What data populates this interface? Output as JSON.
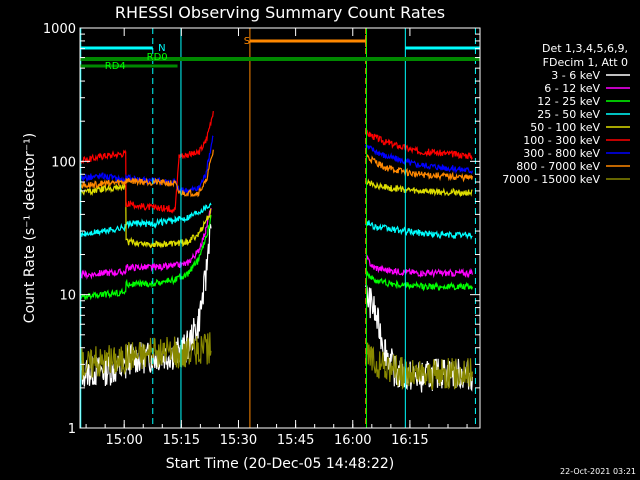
{
  "chart_data": {
    "type": "line",
    "title": "RHESSI Observing Summary Count Rates",
    "xlabel": "Start Time (20-Dec-05 14:48:22)",
    "ylabel": "Count Rate (s⁻¹ detector⁻¹)",
    "yscale": "log",
    "ylim": [
      1,
      1000
    ],
    "xlim_minutes": [
      0,
      105
    ],
    "x_ticks": [
      {
        "label": "15:00",
        "t": 11.6
      },
      {
        "label": "15:15",
        "t": 26.6
      },
      {
        "label": "15:30",
        "t": 41.6
      },
      {
        "label": "15:45",
        "t": 56.6
      },
      {
        "label": "16:00",
        "t": 71.6
      },
      {
        "label": "16:15",
        "t": 86.6
      }
    ],
    "y_ticks": [
      {
        "label": "1",
        "v": 1
      },
      {
        "label": "10",
        "v": 10
      },
      {
        "label": "100",
        "v": 100
      },
      {
        "label": "1000",
        "v": 1000
      }
    ],
    "legend_header": [
      "Det 1,3,4,5,6,9,",
      "FDecim 1, Att 0"
    ],
    "legend_placement": "right",
    "series": [
      {
        "name": "3 - 6 keV",
        "color": "#ffffff",
        "values": [
          [
            0,
            2.6
          ],
          [
            6,
            2.7
          ],
          [
            12,
            2.8
          ],
          [
            12.1,
            3.3
          ],
          [
            19,
            3.4
          ],
          [
            25,
            3.6
          ],
          [
            28,
            4
          ],
          [
            31,
            6
          ],
          [
            33,
            13
          ],
          [
            34.4,
            40
          ],
          [
            75,
            10
          ],
          [
            77,
            8
          ],
          [
            80,
            4
          ],
          [
            83,
            2.5
          ],
          [
            90,
            2.4
          ],
          [
            95,
            2.6
          ],
          [
            103,
            2.5
          ]
        ]
      },
      {
        "name": "6 - 12 keV",
        "color": "#ff00ff",
        "values": [
          [
            0,
            14
          ],
          [
            6,
            14.5
          ],
          [
            12,
            14.8
          ],
          [
            12.1,
            16
          ],
          [
            19,
            16
          ],
          [
            25,
            16.5
          ],
          [
            28,
            17
          ],
          [
            31,
            21
          ],
          [
            33,
            30
          ],
          [
            34.4,
            45
          ],
          [
            75,
            19
          ],
          [
            77,
            16
          ],
          [
            82,
            15
          ],
          [
            90,
            14.5
          ],
          [
            103,
            14.5
          ]
        ]
      },
      {
        "name": "12 - 25 keV",
        "color": "#00ff00",
        "values": [
          [
            0,
            9.5
          ],
          [
            6,
            10
          ],
          [
            12,
            10.5
          ],
          [
            12.1,
            12
          ],
          [
            19,
            12
          ],
          [
            25,
            13
          ],
          [
            28,
            14
          ],
          [
            31,
            18
          ],
          [
            33,
            26
          ],
          [
            34.4,
            38
          ],
          [
            75,
            15
          ],
          [
            77,
            13
          ],
          [
            82,
            12
          ],
          [
            90,
            11.5
          ],
          [
            103,
            11.5
          ]
        ]
      },
      {
        "name": "25 - 50 keV",
        "color": "#00ffff",
        "values": [
          [
            0,
            28
          ],
          [
            6,
            30
          ],
          [
            12,
            32
          ],
          [
            12.1,
            34
          ],
          [
            19,
            34
          ],
          [
            25,
            36
          ],
          [
            28,
            38
          ],
          [
            31,
            42
          ],
          [
            34.4,
            48
          ],
          [
            75,
            35
          ],
          [
            78,
            32
          ],
          [
            85,
            30
          ],
          [
            95,
            28
          ],
          [
            103,
            28
          ]
        ]
      },
      {
        "name": "50 - 100 keV",
        "color": "#dddd00",
        "values": [
          [
            0,
            58
          ],
          [
            6,
            62
          ],
          [
            12,
            65
          ],
          [
            12.1,
            25
          ],
          [
            19,
            24
          ],
          [
            25,
            24
          ],
          [
            28,
            25
          ],
          [
            31,
            28
          ],
          [
            34.4,
            42
          ],
          [
            75,
            70
          ],
          [
            80,
            64
          ],
          [
            88,
            60
          ],
          [
            103,
            58
          ]
        ]
      },
      {
        "name": "100 - 300 keV",
        "color": "#ff0000",
        "values": [
          [
            0,
            100
          ],
          [
            6,
            110
          ],
          [
            12,
            115
          ],
          [
            12.1,
            48
          ],
          [
            19,
            45
          ],
          [
            25,
            44
          ],
          [
            26,
            110
          ],
          [
            31,
            115
          ],
          [
            33,
            140
          ],
          [
            35,
            240
          ],
          [
            75,
            165
          ],
          [
            80,
            140
          ],
          [
            88,
            120
          ],
          [
            103,
            110
          ]
        ]
      },
      {
        "name": "300 - 800 keV",
        "color": "#0000ff",
        "values": [
          [
            0,
            75
          ],
          [
            6,
            78
          ],
          [
            12,
            72
          ],
          [
            12.1,
            75
          ],
          [
            19,
            72
          ],
          [
            25,
            70
          ],
          [
            26,
            60
          ],
          [
            31,
            62
          ],
          [
            33,
            80
          ],
          [
            35,
            160
          ],
          [
            75,
            130
          ],
          [
            80,
            110
          ],
          [
            88,
            95
          ],
          [
            103,
            85
          ]
        ]
      },
      {
        "name": "800 - 7000 keV",
        "color": "#ff8800",
        "values": [
          [
            0,
            65
          ],
          [
            6,
            68
          ],
          [
            12,
            70
          ],
          [
            12.1,
            72
          ],
          [
            19,
            70
          ],
          [
            25,
            68
          ],
          [
            26,
            58
          ],
          [
            31,
            58
          ],
          [
            33,
            70
          ],
          [
            35,
            120
          ],
          [
            75,
            110
          ],
          [
            80,
            90
          ],
          [
            88,
            80
          ],
          [
            103,
            75
          ]
        ]
      },
      {
        "name": "7000 - 15000 keV",
        "color": "#888800",
        "values": [
          [
            0,
            3
          ],
          [
            6,
            3.2
          ],
          [
            12,
            3.3
          ],
          [
            12.1,
            3.6
          ],
          [
            19,
            3.6
          ],
          [
            25,
            3.7
          ],
          [
            28,
            3.6
          ],
          [
            31,
            3.8
          ],
          [
            34.4,
            4
          ],
          [
            75,
            3.5
          ],
          [
            80,
            2.8
          ],
          [
            88,
            2.5
          ],
          [
            103,
            2.6
          ]
        ]
      }
    ],
    "annotations": [
      {
        "text": "N",
        "color": "#00ffff"
      },
      {
        "text": "RD0",
        "color": "#00ff00"
      },
      {
        "text": "RD4",
        "color": "#00ff00"
      },
      {
        "text": "S",
        "color": "#ff8800"
      }
    ],
    "night_intervals": [
      [
        0,
        19.1
      ],
      [
        85.4,
        105
      ]
    ],
    "saa_interval": [
      44.6,
      75
    ],
    "attenuator_bars": [
      {
        "label": "RD0",
        "t0": 0,
        "t1": 105
      },
      {
        "label": "RD4",
        "t0": 0,
        "t1": 25.6
      }
    ],
    "vlines": [
      {
        "t": 0.2,
        "color": "#00ffff",
        "style": "solid"
      },
      {
        "t": 19.1,
        "color": "#00ffff",
        "style": "dashed"
      },
      {
        "t": 26.5,
        "color": "#00ffff",
        "style": "solid"
      },
      {
        "t": 44.6,
        "color": "#ff8800",
        "style": "solid"
      },
      {
        "t": 75,
        "color": "#ff8800",
        "style": "dashed"
      },
      {
        "t": 75.2,
        "color": "#00ff00",
        "style": "solid"
      },
      {
        "t": 85.4,
        "color": "#00ffff",
        "style": "solid"
      },
      {
        "t": 103.8,
        "color": "#00ffff",
        "style": "dashed"
      }
    ],
    "timestamp": "22-Oct-2021 03:21"
  }
}
